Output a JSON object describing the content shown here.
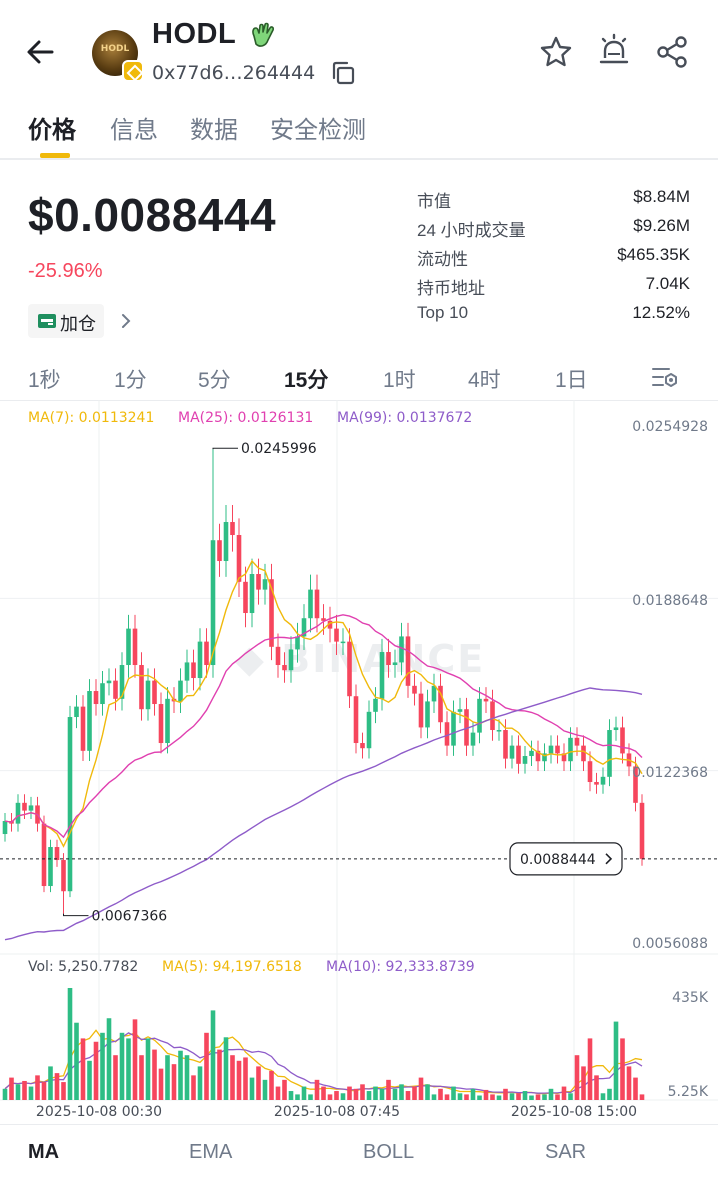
{
  "header": {
    "token_name": "HODL",
    "avatar_text": "HODL",
    "address": "0x77d6…264444"
  },
  "tabs": [
    "价格",
    "信息",
    "数据",
    "安全检测"
  ],
  "active_tab": 0,
  "price": {
    "value": "$0.0088444",
    "change": "-25.96%",
    "add_position_label": "加仓"
  },
  "stats": [
    {
      "label": "市值",
      "value": "$8.84M"
    },
    {
      "label": "24 小时成交量",
      "value": "$9.26M"
    },
    {
      "label": "流动性",
      "value": "$465.35K"
    },
    {
      "label": "持币地址",
      "value": "7.04K"
    },
    {
      "label": "Top 10",
      "value": "12.52%"
    }
  ],
  "intervals": [
    "1秒",
    "1分",
    "5分",
    "15分",
    "1时",
    "4时",
    "1日"
  ],
  "active_interval": 3,
  "indicators": [
    "MA",
    "EMA",
    "BOLL",
    "SAR"
  ],
  "active_indicator": 0,
  "colors": {
    "up": "#2ebd85",
    "down": "#f6465d",
    "ma7": "#f0b90b",
    "ma25": "#e040b0",
    "ma99": "#8e5cc9",
    "accent": "#f0b90b"
  },
  "chart_data": {
    "type": "candlestick",
    "ma_legend": {
      "ma7": "MA(7): 0.0113241",
      "ma25": "MA(25): 0.0126131",
      "ma99": "MA(99): 0.0137672"
    },
    "volume_legend": {
      "vol": "Vol: 5,250.7782",
      "ma5": "MA(5): 94,197.6518",
      "ma10": "MA(10): 92,333.8739"
    },
    "y_ticks": [
      "0.0254928",
      "0.0188648",
      "0.0122368",
      "0.0056088"
    ],
    "y_tick_values": [
      0.0254928,
      0.0188648,
      0.0122368,
      0.0056088
    ],
    "volume_ticks": [
      "435K",
      "5.25K"
    ],
    "x_ticks": [
      "2025-10-08 00:30",
      "2025-10-08 07:45",
      "2025-10-08 15:00"
    ],
    "high_label": "0.0245996",
    "low_label": "0.0067366",
    "current_price_label": "0.0088444",
    "current_price": 0.0088444,
    "high_value": 0.0245996,
    "low_value": 0.0067366,
    "closes": [
      0.0103,
      0.0102,
      0.011,
      0.0107,
      0.0109,
      0.0102,
      0.0078,
      0.0093,
      0.0088,
      0.0076,
      0.0143,
      0.0147,
      0.013,
      0.0153,
      0.0148,
      0.0156,
      0.0157,
      0.015,
      0.0163,
      0.0177,
      0.0163,
      0.0146,
      0.0157,
      0.0148,
      0.0133,
      0.015,
      0.0149,
      0.0157,
      0.0164,
      0.0158,
      0.0172,
      0.0163,
      0.0211,
      0.0203,
      0.0218,
      0.0213,
      0.0195,
      0.0183,
      0.0198,
      0.0192,
      0.0196,
      0.017,
      0.0163,
      0.0161,
      0.0169,
      0.0174,
      0.0181,
      0.0192,
      0.0181,
      0.018,
      0.0177,
      0.0172,
      0.0172,
      0.0151,
      0.0133,
      0.0131,
      0.0145,
      0.015,
      0.0168,
      0.0163,
      0.0164,
      0.0174,
      0.0155,
      0.0152,
      0.0139,
      0.0149,
      0.0155,
      0.0141,
      0.0132,
      0.0145,
      0.0146,
      0.0132,
      0.0137,
      0.015,
      0.0149,
      0.0138,
      0.0138,
      0.0127,
      0.0132,
      0.0125,
      0.0128,
      0.013,
      0.0126,
      0.0129,
      0.0132,
      0.0129,
      0.0126,
      0.0135,
      0.0132,
      0.0126,
      0.0118,
      0.0117,
      0.012,
      0.0138,
      0.0139,
      0.0129,
      0.0124,
      0.011,
      0.0088444
    ],
    "volumes": [
      0.1,
      0.2,
      0.14,
      0.17,
      0.12,
      0.22,
      0.16,
      0.3,
      0.24,
      0.16,
      1.0,
      0.69,
      0.55,
      0.35,
      0.52,
      0.6,
      0.73,
      0.4,
      0.6,
      0.55,
      0.72,
      0.4,
      0.55,
      0.45,
      0.28,
      0.4,
      0.32,
      0.44,
      0.4,
      0.22,
      0.3,
      0.6,
      0.8,
      0.45,
      0.56,
      0.4,
      0.35,
      0.38,
      0.2,
      0.3,
      0.18,
      0.26,
      0.12,
      0.18,
      0.08,
      0.05,
      0.12,
      0.05,
      0.18,
      0.12,
      0.05,
      0.08,
      0.06,
      0.12,
      0.1,
      0.14,
      0.08,
      0.12,
      0.1,
      0.18,
      0.1,
      0.14,
      0.08,
      0.12,
      0.2,
      0.14,
      0.05,
      0.1,
      0.05,
      0.12,
      0.06,
      0.05,
      0.1,
      0.04,
      0.09,
      0.05,
      0.04,
      0.1,
      0.06,
      0.06,
      0.08,
      0.04,
      0.05,
      0.05,
      0.1,
      0.05,
      0.12,
      0.06,
      0.4,
      0.3,
      0.55,
      0.22,
      0.06,
      0.1,
      0.7,
      0.55,
      0.3,
      0.2,
      0.05
    ]
  }
}
